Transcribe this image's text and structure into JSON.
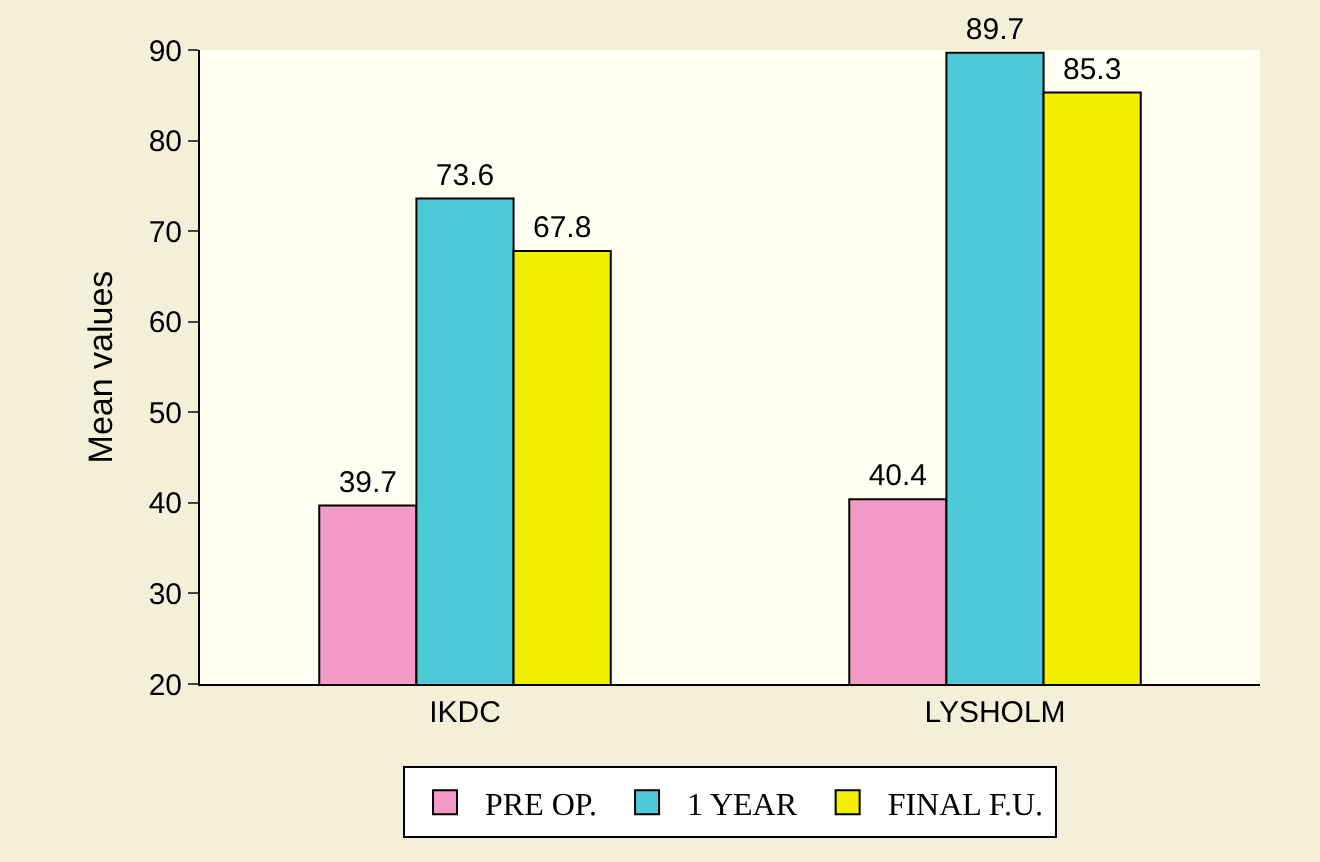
{
  "chart_data": {
    "type": "bar",
    "ylabel": "Mean values",
    "categories": [
      "IKDC",
      "LYSHOLM"
    ],
    "series": [
      {
        "name": "PRE OP.",
        "color": "#f49ac8",
        "values": [
          39.7,
          40.4
        ]
      },
      {
        "name": "1 YEAR",
        "color": "#4fc8d8",
        "values": [
          73.6,
          89.7
        ]
      },
      {
        "name": "FINAL F.U.",
        "color": "#f2f000",
        "values": [
          67.8,
          85.3
        ]
      }
    ],
    "ylim": [
      20,
      90
    ],
    "yticks": [
      20,
      30,
      40,
      50,
      60,
      70,
      80,
      90
    ],
    "grid": false,
    "legend": "bottom",
    "data_labels": true
  }
}
